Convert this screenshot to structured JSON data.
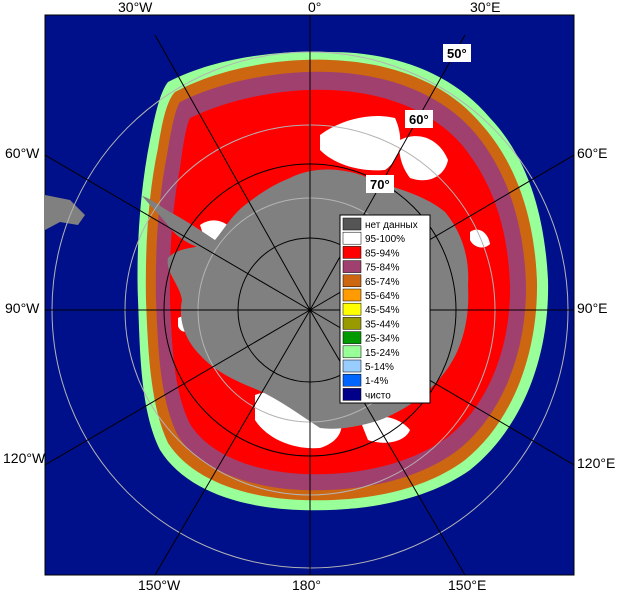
{
  "map": {
    "longitude_labels": {
      "top": [
        "30°W",
        "0°",
        "30°E"
      ],
      "left": [
        "60°W",
        "90°W",
        "120°W"
      ],
      "right": [
        "60°E",
        "90°E",
        "120°E"
      ],
      "bottom": [
        "150°W",
        "180°",
        "150°E"
      ]
    },
    "latitude_labels": [
      "50°",
      "60°",
      "70°"
    ],
    "colors": {
      "open_water": "#00108a",
      "land": "#808080",
      "no_data": "#555555",
      "grid": "#b4b4b4",
      "gridDark": "#000000"
    }
  },
  "legend": {
    "items": [
      {
        "label": "нет данных",
        "color": "#555555"
      },
      {
        "label": "95-100%",
        "color": "#ffffff"
      },
      {
        "label": "85-94%",
        "color": "#ff0000"
      },
      {
        "label": "75-84%",
        "color": "#a0406e"
      },
      {
        "label": "65-74%",
        "color": "#cc6611"
      },
      {
        "label": "55-64%",
        "color": "#ff9a00"
      },
      {
        "label": "45-54%",
        "color": "#ffff00"
      },
      {
        "label": "35-44%",
        "color": "#999900"
      },
      {
        "label": "25-34%",
        "color": "#009900"
      },
      {
        "label": "15-24%",
        "color": "#99ff99"
      },
      {
        "label": "5-14%",
        "color": "#99ccff"
      },
      {
        "label": "1-4%",
        "color": "#0066ff"
      },
      {
        "label": "чисто",
        "color": "#000088"
      }
    ]
  }
}
